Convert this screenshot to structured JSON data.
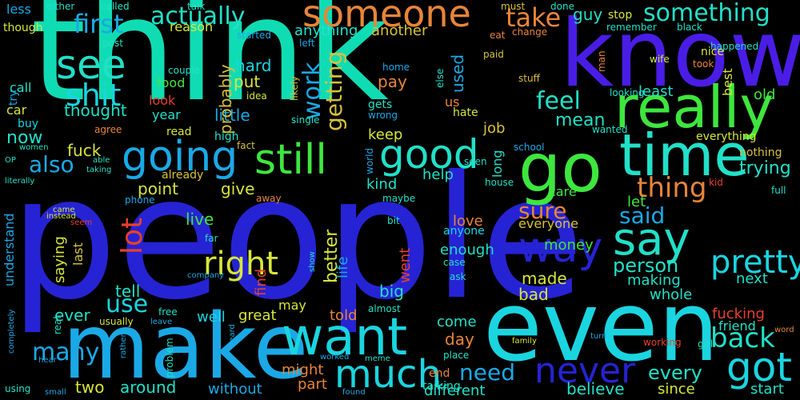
{
  "background": "#000000",
  "words": [
    {
      "text": "people",
      "color": "#2623d4",
      "vertical": false
    },
    {
      "text": "think",
      "color": "#10dcb4",
      "vertical": false
    },
    {
      "text": "know",
      "color": "#4a1de6",
      "vertical": false
    },
    {
      "text": "even",
      "color": "#1ad5e0",
      "vertical": false
    },
    {
      "text": "make",
      "color": "#1aa9e6",
      "vertical": false
    },
    {
      "text": "go",
      "color": "#3ee63e",
      "vertical": false
    },
    {
      "text": "time",
      "color": "#22e0c8",
      "vertical": false
    },
    {
      "text": "really",
      "color": "#3ee63e",
      "vertical": false
    },
    {
      "text": "want",
      "color": "#1ad5e0",
      "vertical": false
    },
    {
      "text": "got",
      "color": "#1ad5e0",
      "vertical": false
    },
    {
      "text": "say",
      "color": "#22e0c8",
      "vertical": false
    },
    {
      "text": "much",
      "color": "#1ad5e0",
      "vertical": false
    },
    {
      "text": "way",
      "color": "#2623d4",
      "vertical": false
    },
    {
      "text": "going",
      "color": "#1aa9e6",
      "vertical": false
    },
    {
      "text": "still",
      "color": "#3ee63e",
      "vertical": false
    },
    {
      "text": "good",
      "color": "#22e0c8",
      "vertical": false
    },
    {
      "text": "someone",
      "color": "#e8853a",
      "vertical": false
    },
    {
      "text": "see",
      "color": "#22e0c8",
      "vertical": false
    },
    {
      "text": "never",
      "color": "#2623d4",
      "vertical": false
    },
    {
      "text": "right",
      "color": "#d8e63a",
      "vertical": false
    },
    {
      "text": "pretty",
      "color": "#1ad5e0",
      "vertical": false
    },
    {
      "text": "back",
      "color": "#22e0c8",
      "vertical": false
    },
    {
      "text": "shit",
      "color": "#1ad5e0",
      "vertical": false
    },
    {
      "text": "first",
      "color": "#1aa9e6",
      "vertical": false
    },
    {
      "text": "actually",
      "color": "#22e0c8",
      "vertical": false
    },
    {
      "text": "something",
      "color": "#22e0c8",
      "vertical": false
    },
    {
      "text": "take",
      "color": "#e8853a",
      "vertical": false
    },
    {
      "text": "feel",
      "color": "#22e0c8",
      "vertical": false
    },
    {
      "text": "lot",
      "color": "#e8402a",
      "vertical": true
    },
    {
      "text": "work",
      "color": "#1aa9e6",
      "vertical": true
    },
    {
      "text": "getting",
      "color": "#d8c23a",
      "vertical": true
    },
    {
      "text": "thing",
      "color": "#e8853a",
      "vertical": false
    },
    {
      "text": "sure",
      "color": "#e8853a",
      "vertical": false
    },
    {
      "text": "said",
      "color": "#1aa9e6",
      "vertical": false
    },
    {
      "text": "use",
      "color": "#1ad5e0",
      "vertical": false
    },
    {
      "text": "need",
      "color": "#1aa9e6",
      "vertical": false
    },
    {
      "text": "every",
      "color": "#22e0c8",
      "vertical": false
    },
    {
      "text": "many",
      "color": "#1aa9e6",
      "vertical": false
    },
    {
      "text": "also",
      "color": "#1aa9e6",
      "vertical": false
    },
    {
      "text": "person",
      "color": "#22e0c8",
      "vertical": false
    },
    {
      "text": "trying",
      "color": "#22e0c8",
      "vertical": false
    },
    {
      "text": "mean",
      "color": "#22e0c8",
      "vertical": false
    },
    {
      "text": "thought",
      "color": "#22e0c8",
      "vertical": false
    },
    {
      "text": "little",
      "color": "#1aa9e6",
      "vertical": false
    },
    {
      "text": "probably",
      "color": "#d8c23a",
      "vertical": true
    },
    {
      "text": "used",
      "color": "#1aa9e6",
      "vertical": true
    },
    {
      "text": "guy",
      "color": "#22e0c8",
      "vertical": false
    },
    {
      "text": "least",
      "color": "#22e0c8",
      "vertical": false
    },
    {
      "text": "another",
      "color": "#d8c23a",
      "vertical": false
    },
    {
      "text": "anything",
      "color": "#22e0c8",
      "vertical": false
    },
    {
      "text": "hard",
      "color": "#1ad5e0",
      "vertical": false
    },
    {
      "text": "put",
      "color": "#d8e63a",
      "vertical": false
    },
    {
      "text": "pay",
      "color": "#e8853a",
      "vertical": false
    },
    {
      "text": "keep",
      "color": "#d8e63a",
      "vertical": false
    },
    {
      "text": "job",
      "color": "#d8c23a",
      "vertical": false
    },
    {
      "text": "fuck",
      "color": "#d8e63a",
      "vertical": false
    },
    {
      "text": "now",
      "color": "#22e0c8",
      "vertical": false
    },
    {
      "text": "give",
      "color": "#d8e63a",
      "vertical": false
    },
    {
      "text": "point",
      "color": "#d8e63a",
      "vertical": false
    },
    {
      "text": "live",
      "color": "#3ee63e",
      "vertical": false
    },
    {
      "text": "tell",
      "color": "#22e0c8",
      "vertical": false
    },
    {
      "text": "made",
      "color": "#d8e63a",
      "vertical": false
    },
    {
      "text": "bad",
      "color": "#d8e63a",
      "vertical": false
    },
    {
      "text": "big",
      "color": "#22e0c8",
      "vertical": false
    },
    {
      "text": "ever",
      "color": "#22e0c8",
      "vertical": false
    },
    {
      "text": "two",
      "color": "#d8e63a",
      "vertical": false
    },
    {
      "text": "around",
      "color": "#22e0c8",
      "vertical": false
    },
    {
      "text": "without",
      "color": "#1aa9e6",
      "vertical": false
    },
    {
      "text": "part",
      "color": "#e8853a",
      "vertical": false
    },
    {
      "text": "different",
      "color": "#22e0c8",
      "vertical": false
    },
    {
      "text": "believe",
      "color": "#22e0c8",
      "vertical": false
    },
    {
      "text": "since",
      "color": "#d8e63a",
      "vertical": false
    },
    {
      "text": "start",
      "color": "#22e0c8",
      "vertical": false
    },
    {
      "text": "fucking",
      "color": "#e8402a",
      "vertical": false
    },
    {
      "text": "friend",
      "color": "#22e0c8",
      "vertical": false
    },
    {
      "text": "whole",
      "color": "#22e0c8",
      "vertical": false
    },
    {
      "text": "making",
      "color": "#22e0c8",
      "vertical": false
    },
    {
      "text": "next",
      "color": "#22e0c8",
      "vertical": false
    },
    {
      "text": "money",
      "color": "#3ee63e",
      "vertical": false
    },
    {
      "text": "let",
      "color": "#3ee63e",
      "vertical": false
    },
    {
      "text": "care",
      "color": "#3ee63e",
      "vertical": false
    },
    {
      "text": "kind",
      "color": "#22e0c8",
      "vertical": false
    },
    {
      "text": "help",
      "color": "#22e0c8",
      "vertical": false
    },
    {
      "text": "love",
      "color": "#e8853a",
      "vertical": false
    },
    {
      "text": "everyone",
      "color": "#d8c23a",
      "vertical": false
    },
    {
      "text": "enough",
      "color": "#22e0c8",
      "vertical": false
    },
    {
      "text": "anyone",
      "color": "#1ad5e0",
      "vertical": false
    },
    {
      "text": "better",
      "color": "#d8e63a",
      "vertical": true
    },
    {
      "text": "life",
      "color": "#1aa9e6",
      "vertical": true
    },
    {
      "text": "went",
      "color": "#e8402a",
      "vertical": true
    },
    {
      "text": "day",
      "color": "#e8853a",
      "vertical": false
    },
    {
      "text": "come",
      "color": "#22e0c8",
      "vertical": false
    },
    {
      "text": "told",
      "color": "#e8853a",
      "vertical": false
    },
    {
      "text": "great",
      "color": "#d8e63a",
      "vertical": false
    },
    {
      "text": "well",
      "color": "#1ad5e0",
      "vertical": false
    },
    {
      "text": "might",
      "color": "#e8853a",
      "vertical": false
    },
    {
      "text": "may",
      "color": "#d8e63a",
      "vertical": false
    },
    {
      "text": "find",
      "color": "#e8402a",
      "vertical": true
    },
    {
      "text": "saying",
      "color": "#d8e63a",
      "vertical": true
    },
    {
      "text": "last",
      "color": "#d8c23a",
      "vertical": true
    },
    {
      "text": "understand",
      "color": "#1aa9e6",
      "vertical": true
    },
    {
      "text": "food",
      "color": "#3ee63e",
      "vertical": false
    },
    {
      "text": "look",
      "color": "#e8402a",
      "vertical": false
    },
    {
      "text": "year",
      "color": "#22e0c8",
      "vertical": false
    },
    {
      "text": "reason",
      "color": "#d8e63a",
      "vertical": false
    },
    {
      "text": "less",
      "color": "#1aa9e6",
      "vertical": false
    },
    {
      "text": "call",
      "color": "#22e0c8",
      "vertical": false
    },
    {
      "text": "car",
      "color": "#d8e63a",
      "vertical": false
    },
    {
      "text": "try",
      "color": "#1aa9e6",
      "vertical": true
    },
    {
      "text": "buy",
      "color": "#1ad5e0",
      "vertical": false
    },
    {
      "text": "though",
      "color": "#d8e63a",
      "vertical": false
    },
    {
      "text": "either",
      "color": "#22e0c8",
      "vertical": false
    },
    {
      "text": "called",
      "color": "#22e0c8",
      "vertical": false
    },
    {
      "text": "talk",
      "color": "#22e0c8",
      "vertical": false
    },
    {
      "text": "post",
      "color": "#22e0c8",
      "vertical": false
    },
    {
      "text": "started",
      "color": "#1aa9e6",
      "vertical": false
    },
    {
      "text": "left",
      "color": "#1aa9e6",
      "vertical": false
    },
    {
      "text": "home",
      "color": "#1aa9e6",
      "vertical": false
    },
    {
      "text": "gets",
      "color": "#22e0c8",
      "vertical": false
    },
    {
      "text": "wrong",
      "color": "#1aa9e6",
      "vertical": false
    },
    {
      "text": "us",
      "color": "#e8853a",
      "vertical": false
    },
    {
      "text": "else",
      "color": "#22e0c8",
      "vertical": true
    },
    {
      "text": "eat",
      "color": "#e8853a",
      "vertical": false
    },
    {
      "text": "change",
      "color": "#e8853a",
      "vertical": false
    },
    {
      "text": "paid",
      "color": "#d8c23a",
      "vertical": false
    },
    {
      "text": "stuff",
      "color": "#d8c23a",
      "vertical": false
    },
    {
      "text": "must",
      "color": "#d8c23a",
      "vertical": false
    },
    {
      "text": "done",
      "color": "#22e0c8",
      "vertical": false
    },
    {
      "text": "stop",
      "color": "#d8e63a",
      "vertical": false
    },
    {
      "text": "remember",
      "color": "#22e0c8",
      "vertical": false
    },
    {
      "text": "black",
      "color": "#22e0c8",
      "vertical": false
    },
    {
      "text": "happened",
      "color": "#22e0c8",
      "vertical": false
    },
    {
      "text": "man",
      "color": "#e8853a",
      "vertical": true
    },
    {
      "text": "wife",
      "color": "#d8e63a",
      "vertical": false
    },
    {
      "text": "nice",
      "color": "#d8e63a",
      "vertical": false
    },
    {
      "text": "took",
      "color": "#e8853a",
      "vertical": false
    },
    {
      "text": "best",
      "color": "#d8e63a",
      "vertical": true
    },
    {
      "text": "old",
      "color": "#3ee63e",
      "vertical": false
    },
    {
      "text": "looking",
      "color": "#22e0c8",
      "vertical": false
    },
    {
      "text": "hate",
      "color": "#d8e63a",
      "vertical": false
    },
    {
      "text": "single",
      "color": "#22e0c8",
      "vertical": false
    },
    {
      "text": "likely",
      "color": "#d8c23a",
      "vertical": true
    },
    {
      "text": "idea",
      "color": "#d8e63a",
      "vertical": false
    },
    {
      "text": "couple",
      "color": "#22e0c8",
      "vertical": false
    },
    {
      "text": "agree",
      "color": "#e8853a",
      "vertical": false
    },
    {
      "text": "read",
      "color": "#d8e63a",
      "vertical": false
    },
    {
      "text": "high",
      "color": "#22e0c8",
      "vertical": false
    },
    {
      "text": "fact",
      "color": "#d8c23a",
      "vertical": false
    },
    {
      "text": "wanted",
      "color": "#22e0c8",
      "vertical": false
    },
    {
      "text": "everything",
      "color": "#d8e63a",
      "vertical": false
    },
    {
      "text": "nothing",
      "color": "#d8c23a",
      "vertical": false
    },
    {
      "text": "school",
      "color": "#1aa9e6",
      "vertical": false
    },
    {
      "text": "world",
      "color": "#1aa9e6",
      "vertical": true
    },
    {
      "text": "long",
      "color": "#22e0c8",
      "vertical": true
    },
    {
      "text": "seen",
      "color": "#22e0c8",
      "vertical": false
    },
    {
      "text": "house",
      "color": "#22e0c8",
      "vertical": false
    },
    {
      "text": "already",
      "color": "#d8c23a",
      "vertical": false
    },
    {
      "text": "phone",
      "color": "#1aa9e6",
      "vertical": false
    },
    {
      "text": "away",
      "color": "#e8853a",
      "vertical": false
    },
    {
      "text": "maybe",
      "color": "#22e0c8",
      "vertical": false
    },
    {
      "text": "bit",
      "color": "#22e0c8",
      "vertical": false
    },
    {
      "text": "kid",
      "color": "#e8402a",
      "vertical": false
    },
    {
      "text": "full",
      "color": "#22e0c8",
      "vertical": false
    },
    {
      "text": "women",
      "color": "#22e0c8",
      "vertical": false
    },
    {
      "text": "OP",
      "color": "#22e0c8",
      "vertical": false
    },
    {
      "text": "able",
      "color": "#22e0c8",
      "vertical": false
    },
    {
      "text": "taking",
      "color": "#22e0c8",
      "vertical": false
    },
    {
      "text": "literally",
      "color": "#22e0c8",
      "vertical": false
    },
    {
      "text": "came",
      "color": "#d8e63a",
      "vertical": false
    },
    {
      "text": "instead",
      "color": "#d8e63a",
      "vertical": false
    },
    {
      "text": "seem",
      "color": "#e8402a",
      "vertical": false
    },
    {
      "text": "far",
      "color": "#22e0c8",
      "vertical": false
    },
    {
      "text": "company",
      "color": "#1aa9e6",
      "vertical": false
    },
    {
      "text": "show",
      "color": "#22e0c8",
      "vertical": true
    },
    {
      "text": "case",
      "color": "#22e0c8",
      "vertical": false
    },
    {
      "text": "ask",
      "color": "#22e0c8",
      "vertical": false
    },
    {
      "text": "almost",
      "color": "#22e0c8",
      "vertical": false
    },
    {
      "text": "free",
      "color": "#22e0c8",
      "vertical": false
    },
    {
      "text": "leave",
      "color": "#1aa9e6",
      "vertical": false
    },
    {
      "text": "real",
      "color": "#22e0c8",
      "vertical": true
    },
    {
      "text": "usually",
      "color": "#d8e63a",
      "vertical": false
    },
    {
      "text": "completely",
      "color": "#1aa9e6",
      "vertical": true
    },
    {
      "text": "rather",
      "color": "#1aa9e6",
      "vertical": true
    },
    {
      "text": "heard",
      "color": "#1aa9e6",
      "vertical": true
    },
    {
      "text": "problem",
      "color": "#22e0c8",
      "vertical": true
    },
    {
      "text": "worked",
      "color": "#1aa9e6",
      "vertical": false
    },
    {
      "text": "meme",
      "color": "#22e0c8",
      "vertical": false
    },
    {
      "text": "place",
      "color": "#22e0c8",
      "vertical": false
    },
    {
      "text": "family",
      "color": "#d8e63a",
      "vertical": false
    },
    {
      "text": "turn",
      "color": "#1aa9e6",
      "vertical": false
    },
    {
      "text": "working",
      "color": "#e8402a",
      "vertical": false
    },
    {
      "text": "girl",
      "color": "#22e0c8",
      "vertical": false
    },
    {
      "text": "word",
      "color": "#e8853a",
      "vertical": false
    },
    {
      "text": "end",
      "color": "#e8853a",
      "vertical": false
    },
    {
      "text": "talking",
      "color": "#22e0c8",
      "vertical": false
    },
    {
      "text": "hear",
      "color": "#1aa9e6",
      "vertical": false
    },
    {
      "text": "using",
      "color": "#22e0c8",
      "vertical": false
    },
    {
      "text": "small",
      "color": "#1aa9e6",
      "vertical": false
    },
    {
      "text": "found",
      "color": "#1aa9e6",
      "vertical": false
    }
  ]
}
